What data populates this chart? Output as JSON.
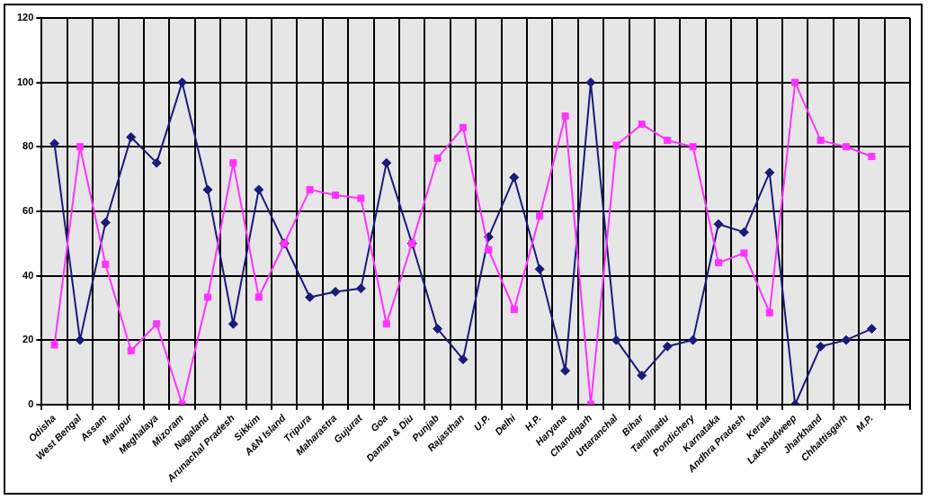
{
  "chart_data": {
    "type": "line",
    "categories": [
      "Odisha",
      "West Bengal",
      "Assam",
      "Manipur",
      "Meghalaya",
      "Mizoram",
      "Nagaland",
      "Arunachal Pradesh",
      "Sikkim",
      "A&N Island",
      "Tripura",
      "Maharastra",
      "Gujurat",
      "Goa",
      "Daman & Diu",
      "Punjab",
      "Rajasthan",
      "U.P.",
      "Delhi",
      "H.P.",
      "Haryana",
      "Chandigarh",
      "Uttaranchal",
      "Bihar",
      "Tamilnadu",
      "Pondichery",
      "Karnataka",
      "Andhra Pradesh",
      "Kerala",
      "Lakshadweep",
      "Jharkhand",
      "Chhattisgarh",
      "M.P.",
      null
    ],
    "series": [
      {
        "color": "#1a1a7a",
        "marker": "diamond",
        "values": [
          81,
          20,
          56.5,
          83,
          75,
          100,
          66.7,
          25,
          66.7,
          50,
          33.3,
          35,
          36,
          75,
          50,
          23.5,
          14,
          52,
          70.5,
          42,
          10.5,
          100,
          20,
          9,
          18,
          20,
          56,
          53.5,
          72,
          0,
          18,
          20,
          23.5,
          null
        ]
      },
      {
        "color": "#ff33ff",
        "marker": "square",
        "values": [
          18.5,
          80,
          43.5,
          16.7,
          25,
          0,
          33.3,
          75,
          33.3,
          50,
          66.7,
          65,
          64,
          25,
          50,
          76.5,
          86,
          48,
          29.5,
          58.5,
          89.5,
          0,
          80.5,
          87,
          82,
          80,
          44,
          47,
          28.5,
          100,
          82,
          80,
          77,
          null
        ]
      }
    ],
    "ylim": [
      0,
      120
    ],
    "yticks": [
      0,
      20,
      40,
      60,
      80,
      100,
      120
    ],
    "grid": true,
    "legend": false,
    "line_style": "solid"
  }
}
